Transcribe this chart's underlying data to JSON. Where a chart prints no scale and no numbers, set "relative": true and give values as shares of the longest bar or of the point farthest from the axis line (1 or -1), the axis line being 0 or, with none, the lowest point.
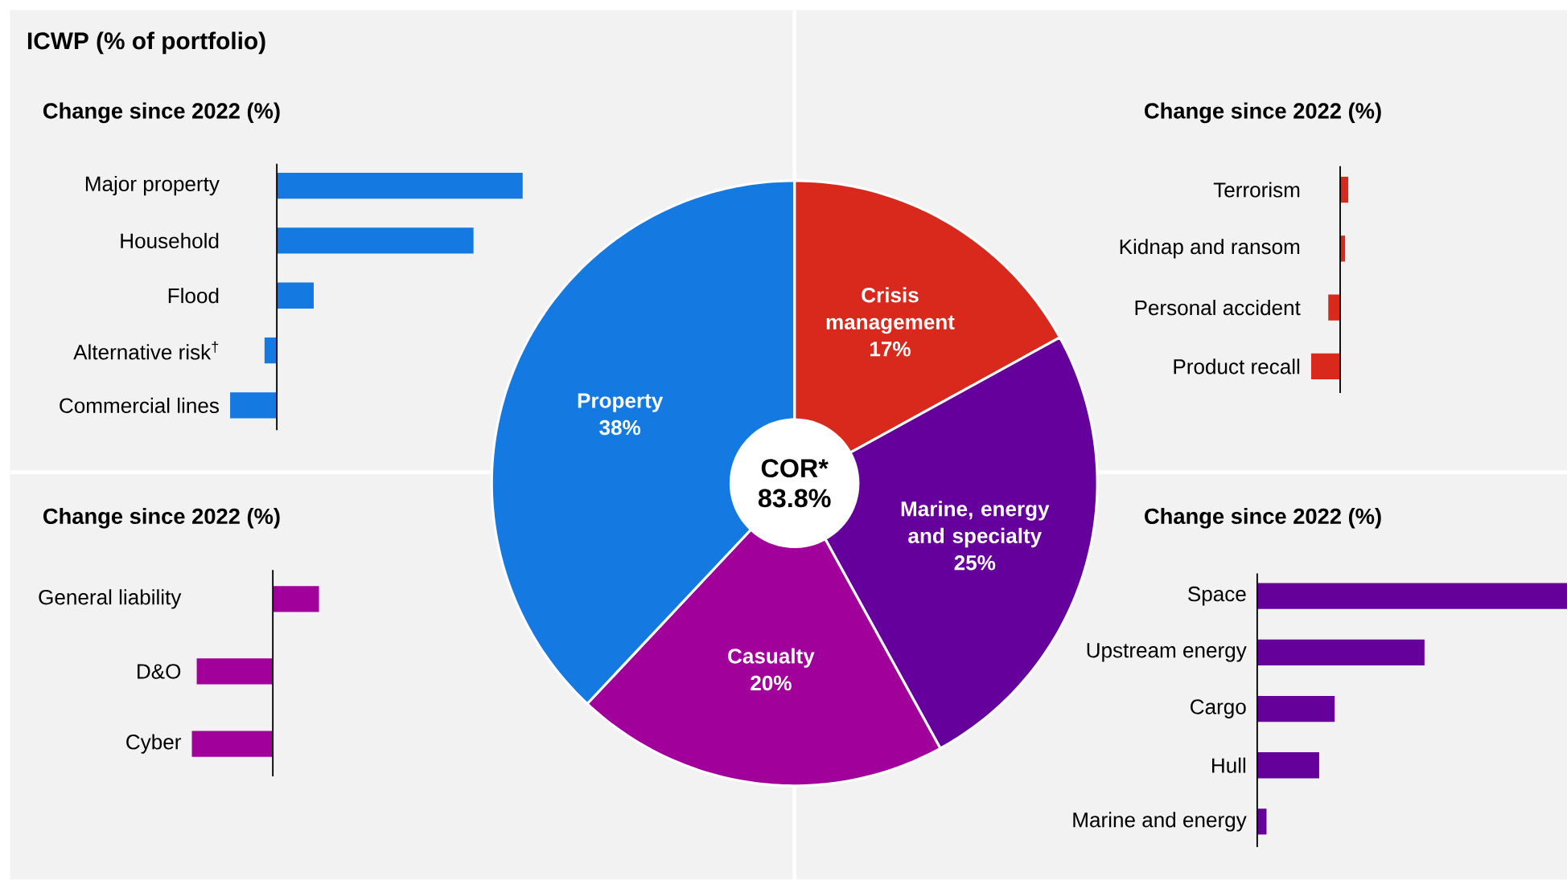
{
  "chart_data": [
    {
      "type": "donut",
      "title": "ICWP (% of portfolio)",
      "categories": [
        "Crisis management",
        "Marine, energy and specialty",
        "Casualty",
        "Property"
      ],
      "values": [
        17,
        25,
        20,
        38
      ],
      "colors": [
        "#d9291c",
        "#65009c",
        "#a1009a",
        "#1479e0"
      ],
      "value_labels": [
        "17%",
        "25%",
        "20%",
        "38%"
      ],
      "annotations": [
        "COR* 83.8%"
      ]
    },
    {
      "type": "bar",
      "orientation": "horizontal",
      "relative": true,
      "title": "Change since 2022 (%)",
      "categories": [
        "Major property",
        "Household",
        "Flood",
        "Alternative risk$^{†}$",
        "Commercial lines"
      ],
      "values": [
        1,
        0.8,
        0.15,
        -0.05,
        -0.19
      ],
      "color": "#1479e0"
    },
    {
      "type": "bar",
      "orientation": "horizontal",
      "relative": true,
      "title": "Change since 2022 (%)",
      "categories": [
        "Terrorism",
        "Kidnap and ransom",
        "Personal accident",
        "Product recall"
      ],
      "values": [
        0.28,
        0.17,
        -0.41,
        -1
      ],
      "color": "#d9291c"
    },
    {
      "type": "bar",
      "orientation": "horizontal",
      "relative": true,
      "title": "Change since 2022 (%)",
      "categories": [
        "General liability",
        "D&O",
        "Cyber"
      ],
      "values": [
        0.57,
        -0.94,
        -1
      ],
      "color": "#a1009a"
    },
    {
      "type": "bar",
      "orientation": "horizontal",
      "relative": true,
      "title": "Change since 2022 (%)",
      "categories": [
        "Space",
        "Upstream energy",
        "Cargo",
        "Hull",
        "Marine and energy"
      ],
      "values": [
        1,
        0.54,
        0.25,
        0.2,
        0.03
      ],
      "color": "#66009a"
    }
  ]
}
